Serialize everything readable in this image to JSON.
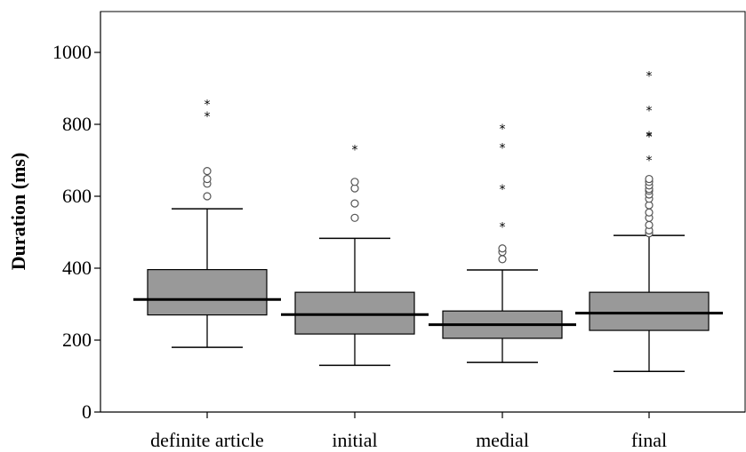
{
  "chart_data": {
    "type": "box",
    "title": "",
    "xlabel": "",
    "ylabel": "Duration (ms)",
    "ylim": [
      0,
      1100
    ],
    "yticks": [
      0,
      200,
      400,
      600,
      800,
      1000
    ],
    "categories": [
      "definite article",
      "initial",
      "medial",
      "final"
    ],
    "boxes": [
      {
        "min": 180,
        "q1": 270,
        "median": 313,
        "q3": 396,
        "max": 565,
        "outliers": [
          600,
          635,
          648,
          670
        ],
        "extremes": [
          822,
          856
        ]
      },
      {
        "min": 130,
        "q1": 217,
        "median": 271,
        "q3": 333,
        "max": 483,
        "outliers": [
          540,
          580,
          622,
          640
        ],
        "extremes": [
          730
        ]
      },
      {
        "min": 138,
        "q1": 205,
        "median": 243,
        "q3": 281,
        "max": 395,
        "outliers": [
          425,
          445,
          455
        ],
        "extremes": [
          515,
          620,
          735,
          788
        ]
      },
      {
        "min": 113,
        "q1": 227,
        "median": 275,
        "q3": 333,
        "max": 491,
        "outliers": [
          497,
          505,
          520,
          540,
          555,
          575,
          593,
          605,
          615,
          620,
          630,
          640,
          648
        ],
        "extremes": [
          700,
          765,
          768,
          838,
          935
        ]
      }
    ]
  }
}
